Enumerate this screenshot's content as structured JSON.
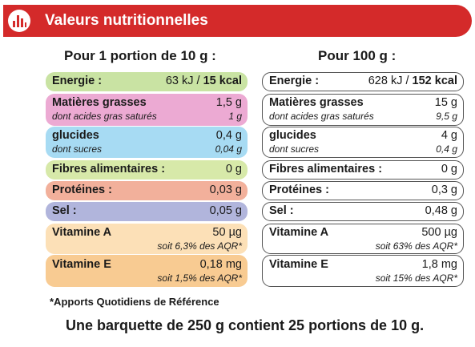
{
  "header": {
    "title": "Valeurs nutritionnelles"
  },
  "columns": {
    "per_portion": "Pour 1 portion de 10 g :",
    "per_100g": "Pour 100 g :"
  },
  "colors": {
    "header": "#d42a2a",
    "energie": "#c9e3a3",
    "matieres_grasses": "#ecaad3",
    "glucides": "#a7dbf3",
    "fibres": "#d7e9a9",
    "proteines": "#f2b09b",
    "sel": "#b1b5dc",
    "vitamine_a": "#fce0b7",
    "vitamine_e": "#f8cb92"
  },
  "portion": {
    "energie": {
      "label": "Energie :",
      "kj": "63 kJ /",
      "kcal": "15 kcal"
    },
    "matieres_grasses": {
      "label": "Matières grasses",
      "value": "1,5 g",
      "sub_label": "dont acides gras saturés",
      "sub_value": "1 g"
    },
    "glucides": {
      "label": "glucides",
      "value": "0,4 g",
      "sub_label": "dont sucres",
      "sub_value": "0,04 g"
    },
    "fibres": {
      "label": "Fibres alimentaires :",
      "value": "0 g"
    },
    "proteines": {
      "label": "Protéines :",
      "value": "0,03 g"
    },
    "sel": {
      "label": "Sel :",
      "value": "0,05 g"
    },
    "vitamine_a": {
      "label": "Vitamine A",
      "value": "50 µg",
      "sub_value": "soit 6,3% des AQR*"
    },
    "vitamine_e": {
      "label": "Vitamine E",
      "value": "0,18 mg",
      "sub_value": "soit 1,5% des AQR*"
    }
  },
  "per100": {
    "energie": {
      "label": "Energie :",
      "kj": "628 kJ /",
      "kcal": "152 kcal"
    },
    "matieres_grasses": {
      "label": "Matières grasses",
      "value": "15 g",
      "sub_label": "dont acides gras saturés",
      "sub_value": "9,5 g"
    },
    "glucides": {
      "label": "glucides",
      "value": "4 g",
      "sub_label": "dont sucres",
      "sub_value": "0,4 g"
    },
    "fibres": {
      "label": "Fibres alimentaires :",
      "value": "0 g"
    },
    "proteines": {
      "label": "Protéines :",
      "value": "0,3 g"
    },
    "sel": {
      "label": "Sel :",
      "value": "0,48 g"
    },
    "vitamine_a": {
      "label": "Vitamine A",
      "value": "500 µg",
      "sub_value": "soit 63% des AQR*"
    },
    "vitamine_e": {
      "label": "Vitamine E",
      "value": "1,8 mg",
      "sub_value": "soit 15% des AQR*"
    }
  },
  "footnote": "*Apports Quotidiens de Référence",
  "summary": "Une barquette de 250 g contient 25 portions de 10 g."
}
